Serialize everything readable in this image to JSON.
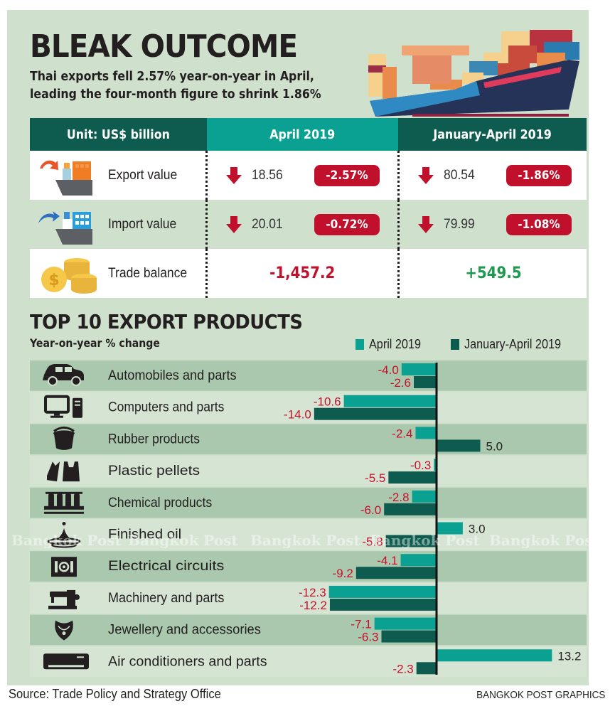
{
  "header": {
    "title": "BLEAK OUTCOME",
    "subtitle_line1": "Thai exports fell 2.57% year-on-year in April,",
    "subtitle_line2": "leading the four-month figure to shrink 1.86%",
    "illustration": "cargo-ship-illustration"
  },
  "summary_table": {
    "headers": [
      "Unit: US$ billion",
      "April 2019",
      "January-April 2019"
    ],
    "rows": [
      {
        "icon": "export-ship-icon",
        "label": "Export value",
        "april_value": "18.56",
        "april_change": "-2.57%",
        "ytd_value": "80.54",
        "ytd_change": "-1.86%",
        "direction": "down"
      },
      {
        "icon": "import-ship-icon",
        "label": "Import value",
        "april_value": "20.01",
        "april_change": "-0.72%",
        "ytd_value": "79.99",
        "ytd_change": "-1.08%",
        "direction": "down"
      },
      {
        "icon": "coins-icon",
        "label": "Trade balance",
        "april_value": "-1,457.2",
        "ytd_value": "+549.5"
      }
    ]
  },
  "chart_section": {
    "title": "TOP 10 EXPORT PRODUCTS",
    "subtitle": "Year-on-year % change"
  },
  "colors": {
    "april": "#0aa193",
    "ytd": "#0d5c4f",
    "negative_label": "#c8102e",
    "positive_label": "#231f20",
    "row_dark": "#a9c8ad",
    "row_light": "#d6e5d3"
  },
  "chart_data": {
    "type": "bar",
    "orientation": "horizontal",
    "title": "TOP 10 EXPORT PRODUCTS",
    "subtitle": "Year-on-year % change",
    "xlabel": "",
    "ylabel": "",
    "legend_position": "top-right",
    "grid": false,
    "categories": [
      "Automobiles and parts",
      "Computers and parts",
      "Rubber products",
      "Plastic pellets",
      "Chemical products",
      "Finished oil",
      "Electrical circuits",
      "Machinery and parts",
      "Jewellery and accessories",
      "Air conditioners and parts"
    ],
    "category_icons": [
      "car-icon",
      "computer-icon",
      "bucket-icon",
      "plastic-bag-icon",
      "test-tubes-icon",
      "oil-drop-icon",
      "circuit-icon",
      "sewing-machine-icon",
      "necklace-icon",
      "air-conditioner-icon"
    ],
    "series": [
      {
        "name": "April 2019",
        "values": [
          -4.0,
          -10.6,
          -2.4,
          -0.3,
          -2.8,
          3.0,
          -4.1,
          -12.3,
          -7.1,
          13.2
        ]
      },
      {
        "name": "January-April 2019",
        "values": [
          -2.6,
          -14.0,
          5.0,
          -5.5,
          -6.0,
          -5.8,
          -9.2,
          -12.2,
          -6.3,
          -2.3
        ]
      }
    ],
    "xlim": [
      -14.5,
      13.5
    ]
  },
  "watermark": "Bangkok Post",
  "footer": {
    "source": "Source: Trade Policy and Strategy Office",
    "credit": "BANGKOK POST GRAPHICS"
  }
}
